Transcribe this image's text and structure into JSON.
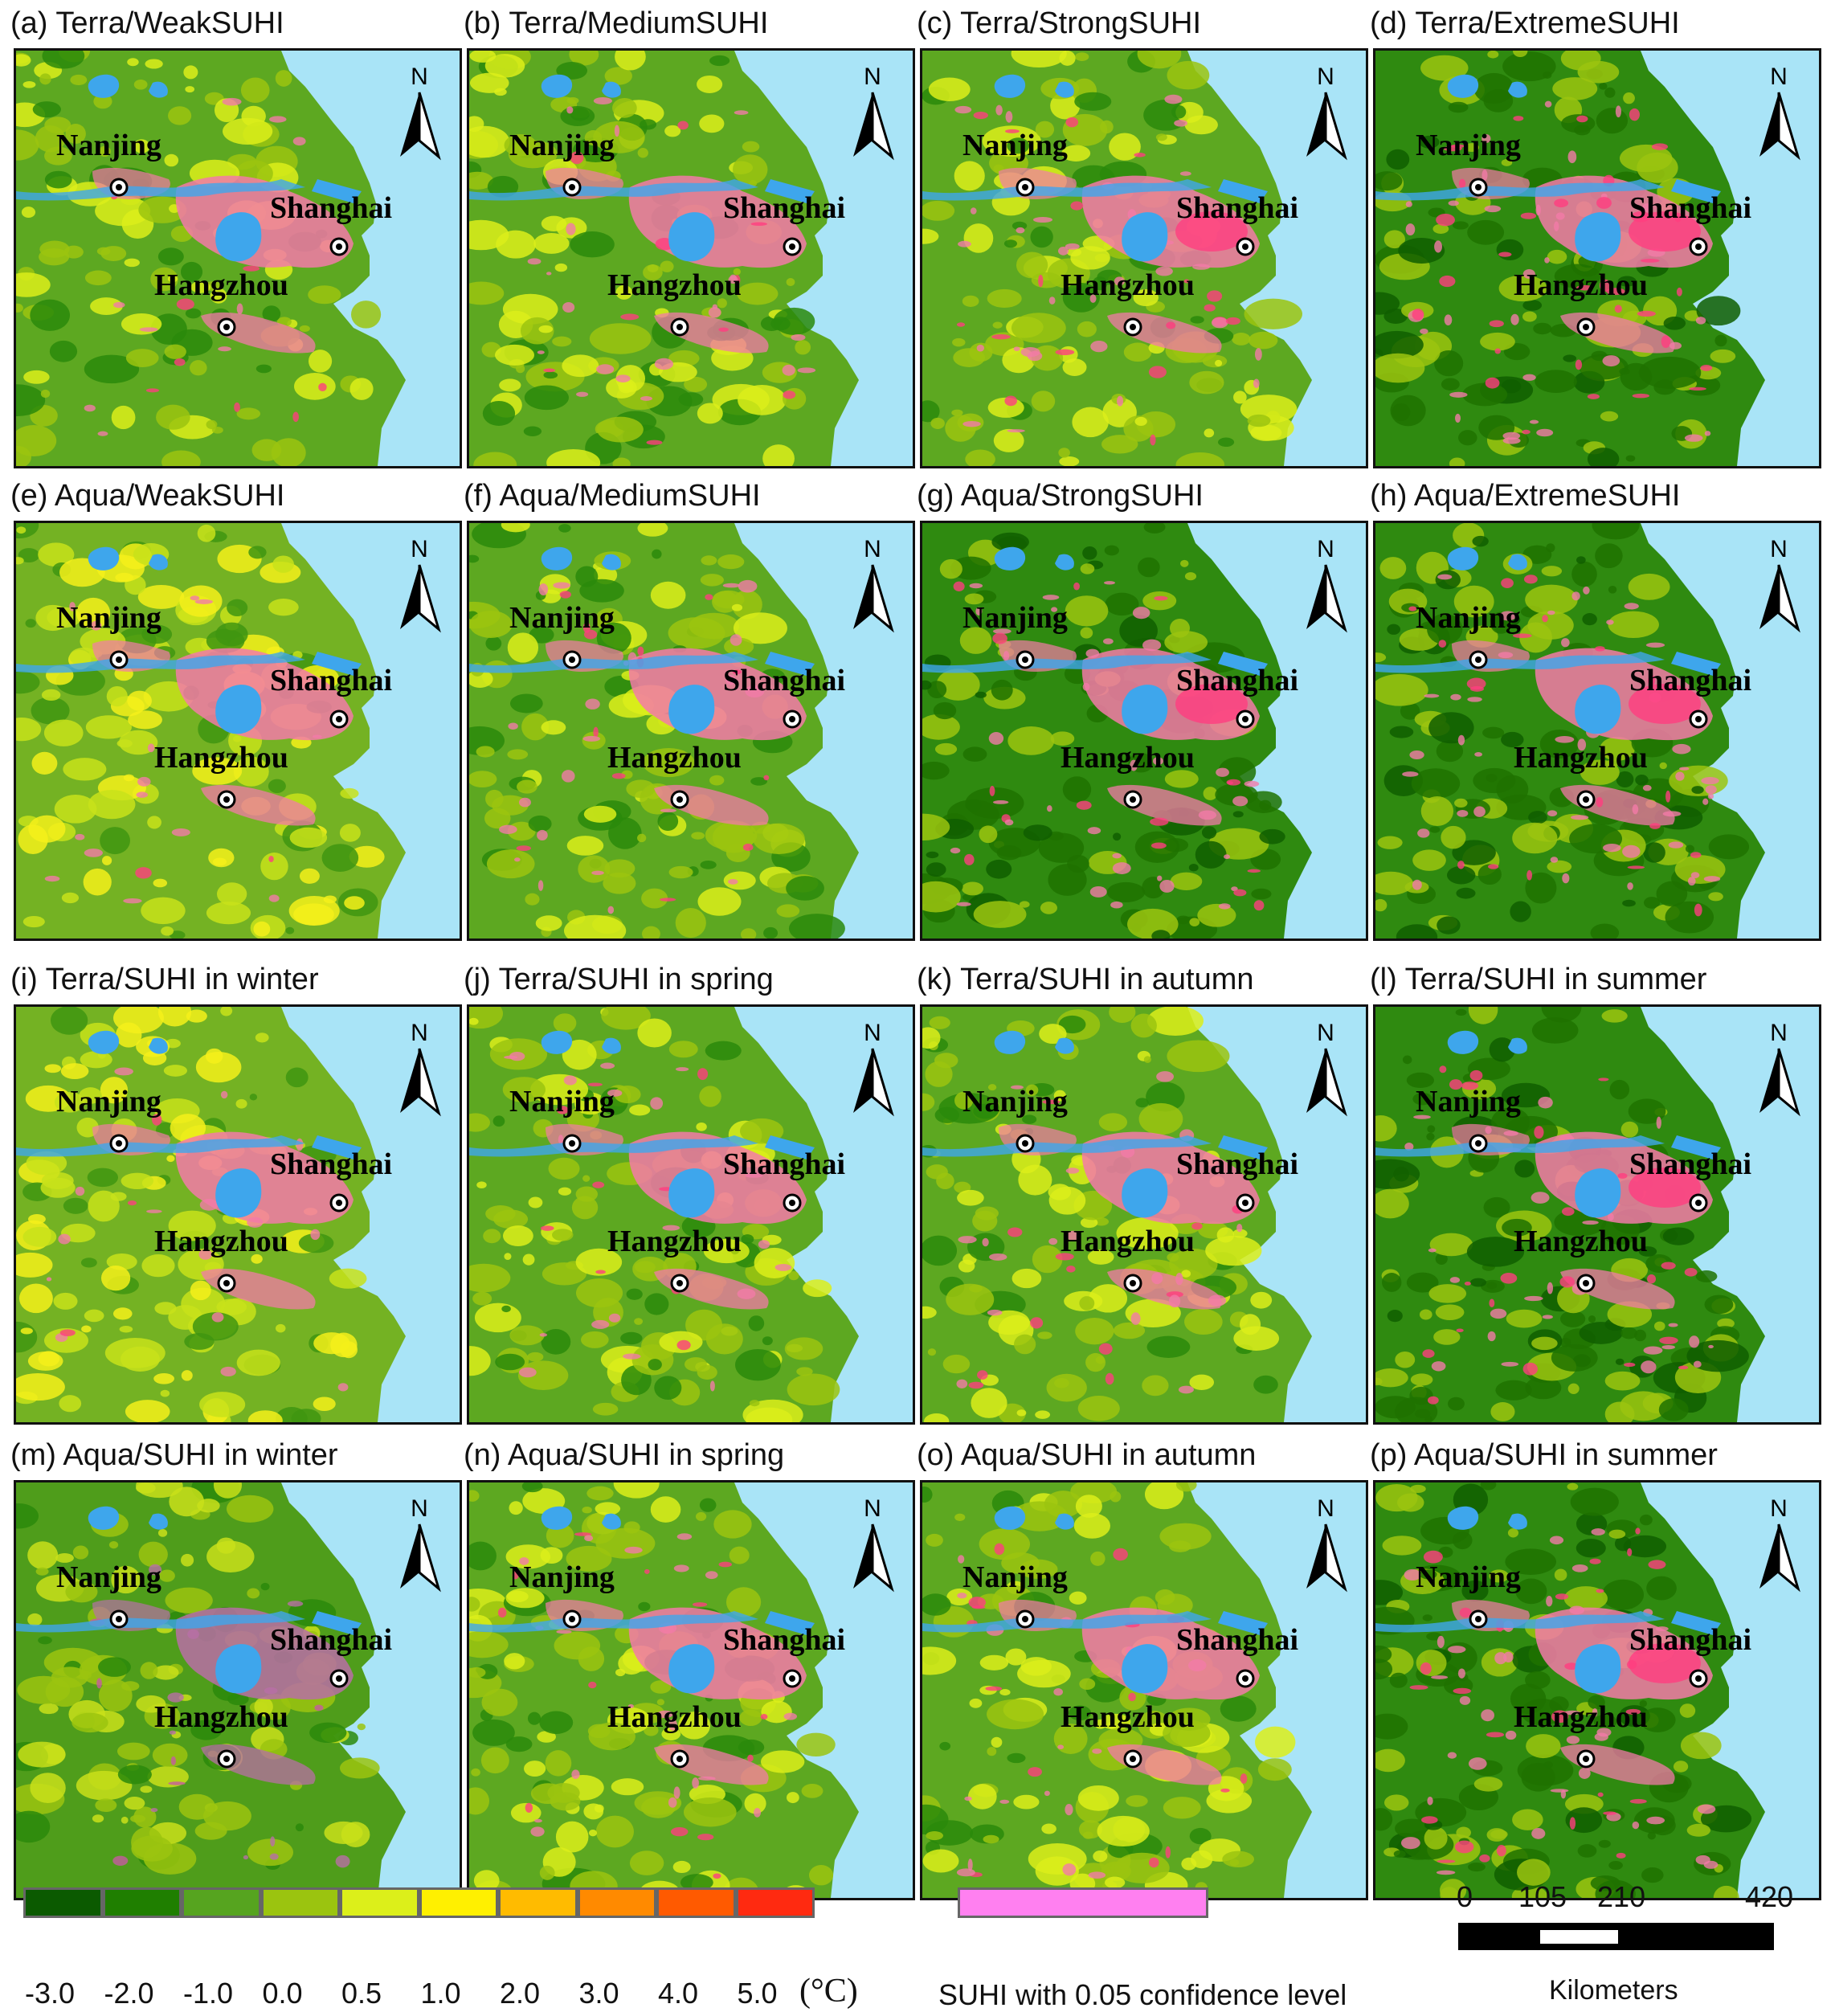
{
  "panels": [
    {
      "title": "(a) Terra/WeakSUHI",
      "intensity": 1,
      "style": "base"
    },
    {
      "title": "(b) Terra/MediumSUHI",
      "intensity": 2,
      "style": "base"
    },
    {
      "title": "(c) Terra/StrongSUHI",
      "intensity": 3,
      "style": "base"
    },
    {
      "title": "(d) Terra/ExtremeSUHI",
      "intensity": 4,
      "style": "dark"
    },
    {
      "title": "(e) Aqua/WeakSUHI",
      "intensity": 1,
      "style": "yellow"
    },
    {
      "title": "(f) Aqua/MediumSUHI",
      "intensity": 2,
      "style": "base"
    },
    {
      "title": "(g) Aqua/StrongSUHI",
      "intensity": 3,
      "style": "dark"
    },
    {
      "title": "(h) Aqua/ExtremeSUHI",
      "intensity": 4,
      "style": "dark"
    },
    {
      "title": "(i) Terra/SUHI in winter",
      "intensity": 1,
      "style": "yellow"
    },
    {
      "title": "(j) Terra/SUHI in spring",
      "intensity": 2,
      "style": "base"
    },
    {
      "title": "(k) Terra/SUHI in autumn",
      "intensity": 2,
      "style": "base"
    },
    {
      "title": "(l) Terra/SUHI in summer",
      "intensity": 3,
      "style": "dark"
    },
    {
      "title": "(m) Aqua/SUHI in winter",
      "intensity": 1,
      "style": "purple"
    },
    {
      "title": "(n) Aqua/SUHI in spring",
      "intensity": 2,
      "style": "base"
    },
    {
      "title": "(o) Aqua/SUHI in autumn",
      "intensity": 2,
      "style": "base"
    },
    {
      "title": "(p) Aqua/SUHI in summer",
      "intensity": 4,
      "style": "dark"
    }
  ],
  "cities": [
    "Nanjing",
    "Shanghai",
    "Hangzhou"
  ],
  "north_arrow_label": "N",
  "legend": {
    "colors": [
      "#0b5a00",
      "#1f7f00",
      "#56a41f",
      "#9bc40f",
      "#dcef1a",
      "#fff000",
      "#ffbb00",
      "#ff8a00",
      "#ff5a00",
      "#ff2a10"
    ],
    "ticks": [
      "-3.0",
      "-2.0",
      "-1.0",
      "0.0",
      "0.5",
      "1.0",
      "2.0",
      "3.0",
      "4.0",
      "5.0"
    ],
    "unit": "(°C)",
    "confidence_color": "#ff80f0",
    "confidence_label": "SUHI with 0.05 confidence level"
  },
  "scale_bar": {
    "ticks": [
      "0",
      "105",
      "210",
      "420"
    ],
    "unit": "Kilometers"
  }
}
